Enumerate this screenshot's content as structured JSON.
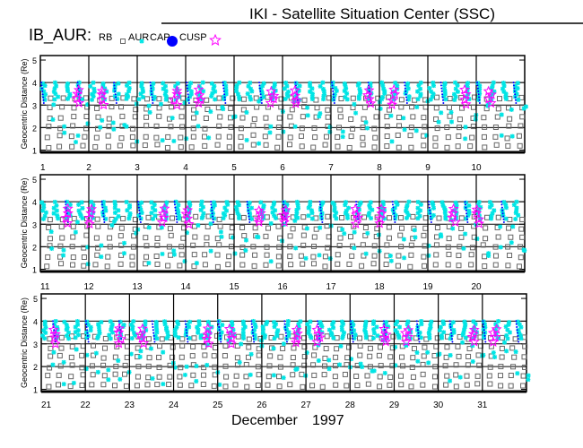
{
  "chart_data": {
    "type": "scatter",
    "title": "IKI - Satellite Situation Center (SSC)",
    "satellite_label": "IB_AUR:",
    "legend": [
      {
        "label": "RB",
        "color": "#666666",
        "marker": "square"
      },
      {
        "label": "AUR",
        "color": "#00e5e5",
        "marker": "asterisk"
      },
      {
        "label": "CAP",
        "color": "#0000ff",
        "marker": "dot"
      },
      {
        "label": "CUSP",
        "color": "#ff00ff",
        "marker": "star"
      }
    ],
    "ylabel": "Geocentric Distance (Re)",
    "ylim": [
      0.9,
      5.2
    ],
    "yticks": [
      "1",
      "2",
      "3",
      "4",
      "5"
    ],
    "xlabel_month": "December",
    "xlabel_year": "1997",
    "orbits_per_day": 4,
    "apogee_re": 4.0,
    "panels": [
      {
        "days": [
          "1",
          "2",
          "3",
          "4",
          "5",
          "6",
          "7",
          "8",
          "9",
          "10"
        ]
      },
      {
        "days": [
          "11",
          "12",
          "13",
          "14",
          "15",
          "16",
          "17",
          "18",
          "19",
          "20"
        ]
      },
      {
        "days": [
          "21",
          "22",
          "23",
          "24",
          "25",
          "26",
          "27",
          "28",
          "29",
          "30",
          "31"
        ]
      }
    ]
  }
}
